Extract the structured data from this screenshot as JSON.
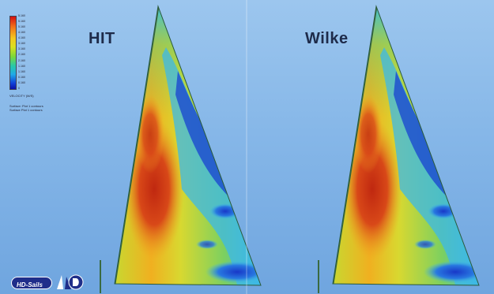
{
  "labels": {
    "left": "HIT",
    "right": "Wilke"
  },
  "legend": {
    "ticks": [
      "5.160",
      "5.160",
      "5.160",
      "4.160",
      "4.160",
      "3.160",
      "3.160",
      "2.160",
      "2.160",
      "1.160",
      "1.160",
      "0.160",
      "0.160",
      "0"
    ],
    "unit": "VELOCITY (M/S)",
    "note1": "Surface: Plot 1 contours",
    "note2": "Surface Plot 1 contours"
  },
  "logo": {
    "text": "HD-Sails"
  },
  "colors": {
    "sky_top": "#9cc6ee",
    "sky_bottom": "#6fa5df",
    "label_text": "#1e2b4a",
    "hot": "#c83010",
    "warm": "#f0b020",
    "mid": "#c8d830",
    "cool": "#3cb8e8",
    "cold": "#1838c8"
  }
}
